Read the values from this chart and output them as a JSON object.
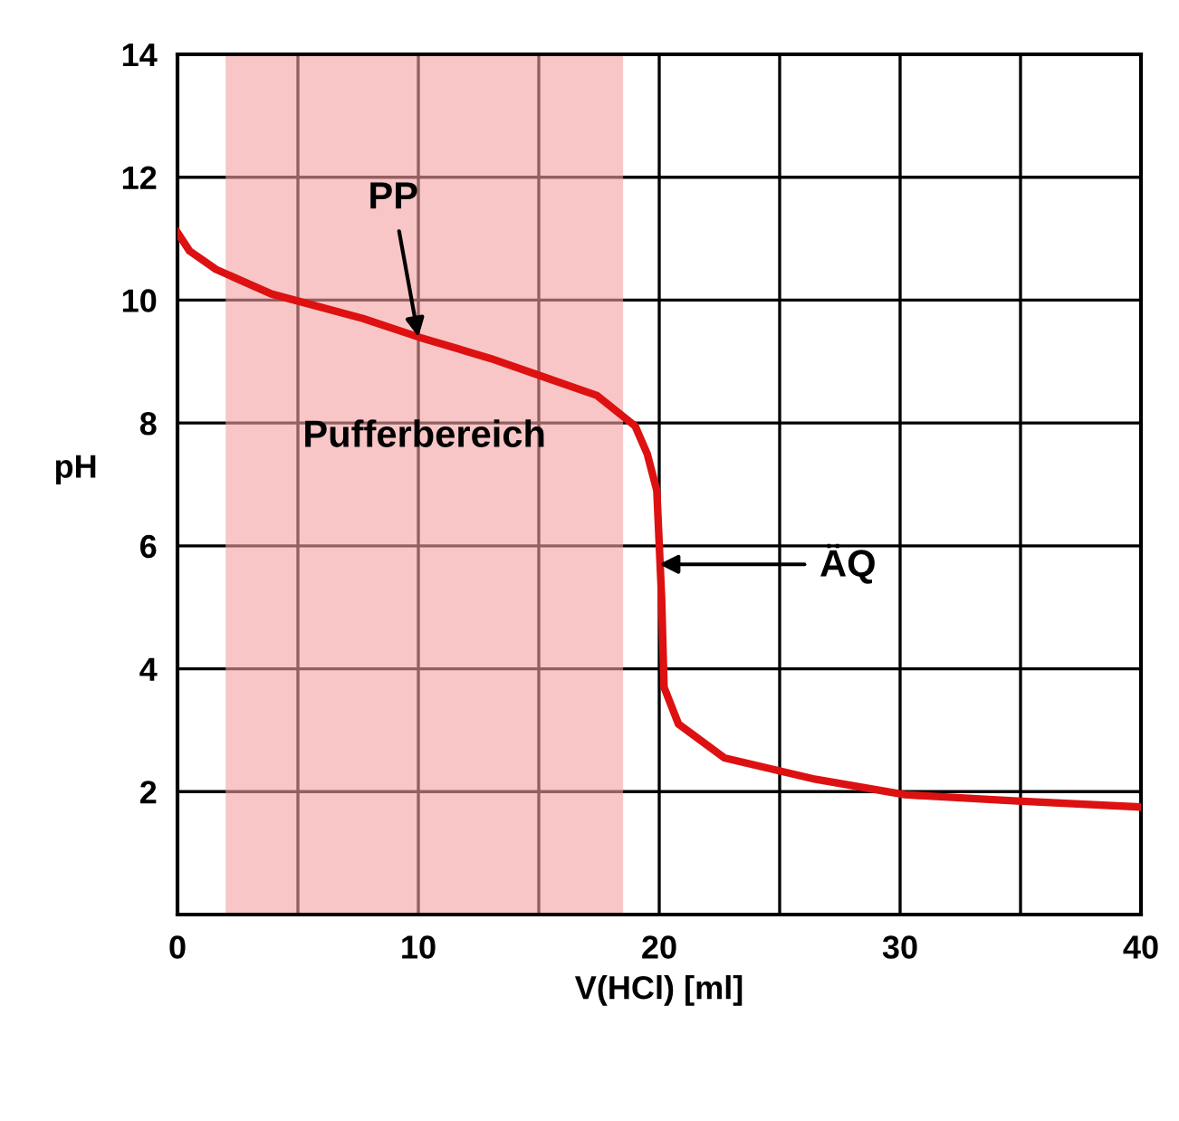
{
  "chart_data": {
    "type": "line",
    "xlabel": "V(HCl) [ml]",
    "ylabel": "pH",
    "x": [
      0,
      0.5,
      1.6,
      3.9,
      7.7,
      10,
      13,
      15.2,
      17.4,
      19,
      19.5,
      19.9,
      20.1,
      20.2,
      20.8,
      22.7,
      26.5,
      30.2,
      34.7,
      40
    ],
    "series": [
      {
        "color": "#dd1111",
        "values": [
          11.1,
          10.8,
          10.5,
          10.1,
          9.7,
          9.4,
          9.05,
          8.75,
          8.45,
          7.95,
          7.5,
          6.9,
          5.15,
          3.7,
          3.1,
          2.55,
          2.2,
          1.95,
          1.85,
          1.75
        ]
      }
    ],
    "xlim": [
      0,
      40
    ],
    "ylim": [
      0,
      14
    ],
    "xticks": [
      0,
      {
        "value": 5,
        "label": null
      },
      10,
      {
        "value": 15,
        "label": null
      },
      20,
      {
        "value": 25,
        "label": null
      },
      30,
      {
        "value": 35,
        "label": null
      },
      40
    ],
    "yticks": [
      2,
      4,
      6,
      8,
      10,
      12,
      14
    ],
    "grid": true,
    "marker": "none",
    "line_style": "solid",
    "legend": false,
    "bands": [
      {
        "axis": "x",
        "from": 2,
        "to": 18.5,
        "label": "Pufferbereich",
        "color": "#f4a0a0"
      }
    ],
    "annotations": [
      {
        "text": "PP",
        "x": 10,
        "y": 9.4
      },
      {
        "text": "ÄQ",
        "x": 20,
        "y": 5.7
      }
    ]
  }
}
